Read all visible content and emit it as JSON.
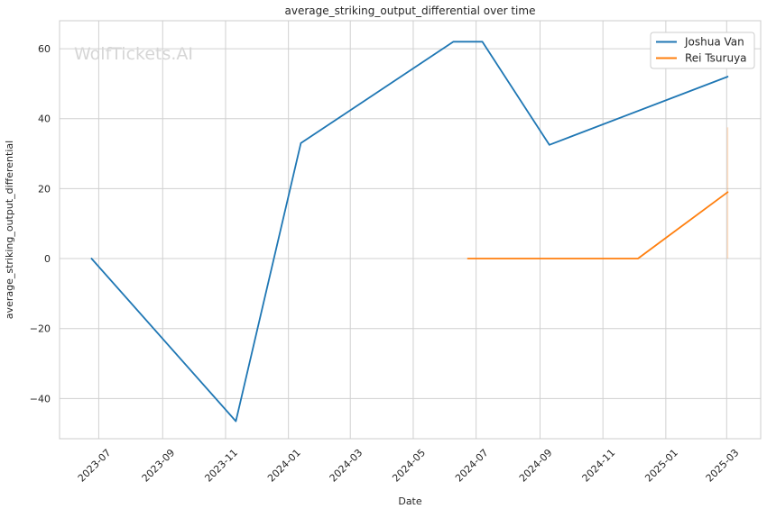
{
  "watermark": {
    "text": "WolfTickets.AI",
    "color": "#d6d6d6"
  },
  "chart_data": {
    "type": "line",
    "title": "average_striking_output_differential over time",
    "xlabel": "Date",
    "ylabel": "average_striking_output_differential",
    "grid": true,
    "legend_position": "upper right",
    "xlim": [
      "2023-05-24",
      "2025-04-03"
    ],
    "ylim": [
      -51.5,
      68
    ],
    "x_ticks": [
      {
        "label": "2023-07",
        "date": "2023-07-01"
      },
      {
        "label": "2023-09",
        "date": "2023-09-01"
      },
      {
        "label": "2023-11",
        "date": "2023-11-01"
      },
      {
        "label": "2024-01",
        "date": "2024-01-01"
      },
      {
        "label": "2024-03",
        "date": "2024-03-01"
      },
      {
        "label": "2024-05",
        "date": "2024-05-01"
      },
      {
        "label": "2024-07",
        "date": "2024-07-01"
      },
      {
        "label": "2024-09",
        "date": "2024-09-01"
      },
      {
        "label": "2024-11",
        "date": "2024-11-01"
      },
      {
        "label": "2025-01",
        "date": "2025-01-01"
      },
      {
        "label": "2025-03",
        "date": "2025-03-01"
      }
    ],
    "y_ticks": [
      {
        "label": "−40",
        "value": -40
      },
      {
        "label": "−20",
        "value": -20
      },
      {
        "label": "0",
        "value": 0
      },
      {
        "label": "20",
        "value": 20
      },
      {
        "label": "40",
        "value": 40
      },
      {
        "label": "60",
        "value": 60
      }
    ],
    "series": [
      {
        "name": "Joshua Van",
        "color": "#1f77b4",
        "points": [
          {
            "date": "2023-06-24",
            "value": 0
          },
          {
            "date": "2023-11-11",
            "value": -46.5
          },
          {
            "date": "2024-01-13",
            "value": 33
          },
          {
            "date": "2024-06-09",
            "value": 62
          },
          {
            "date": "2024-07-07",
            "value": 62
          },
          {
            "date": "2024-09-10",
            "value": 32.5
          },
          {
            "date": "2025-03-02",
            "value": 52
          }
        ]
      },
      {
        "name": "Rei Tsuruya",
        "color": "#ff7f0e",
        "points": [
          {
            "date": "2024-06-23",
            "value": 0
          },
          {
            "date": "2024-12-05",
            "value": 0
          },
          {
            "date": "2025-03-02",
            "value": 19
          }
        ],
        "ci_last_point": {
          "date": "2025-03-02",
          "low": 0,
          "high": 37.5
        }
      }
    ],
    "style": {
      "grid_color": "#d0d0d0",
      "spine_color": "#cccccc",
      "text_color": "#262626",
      "background": "#ffffff"
    }
  }
}
